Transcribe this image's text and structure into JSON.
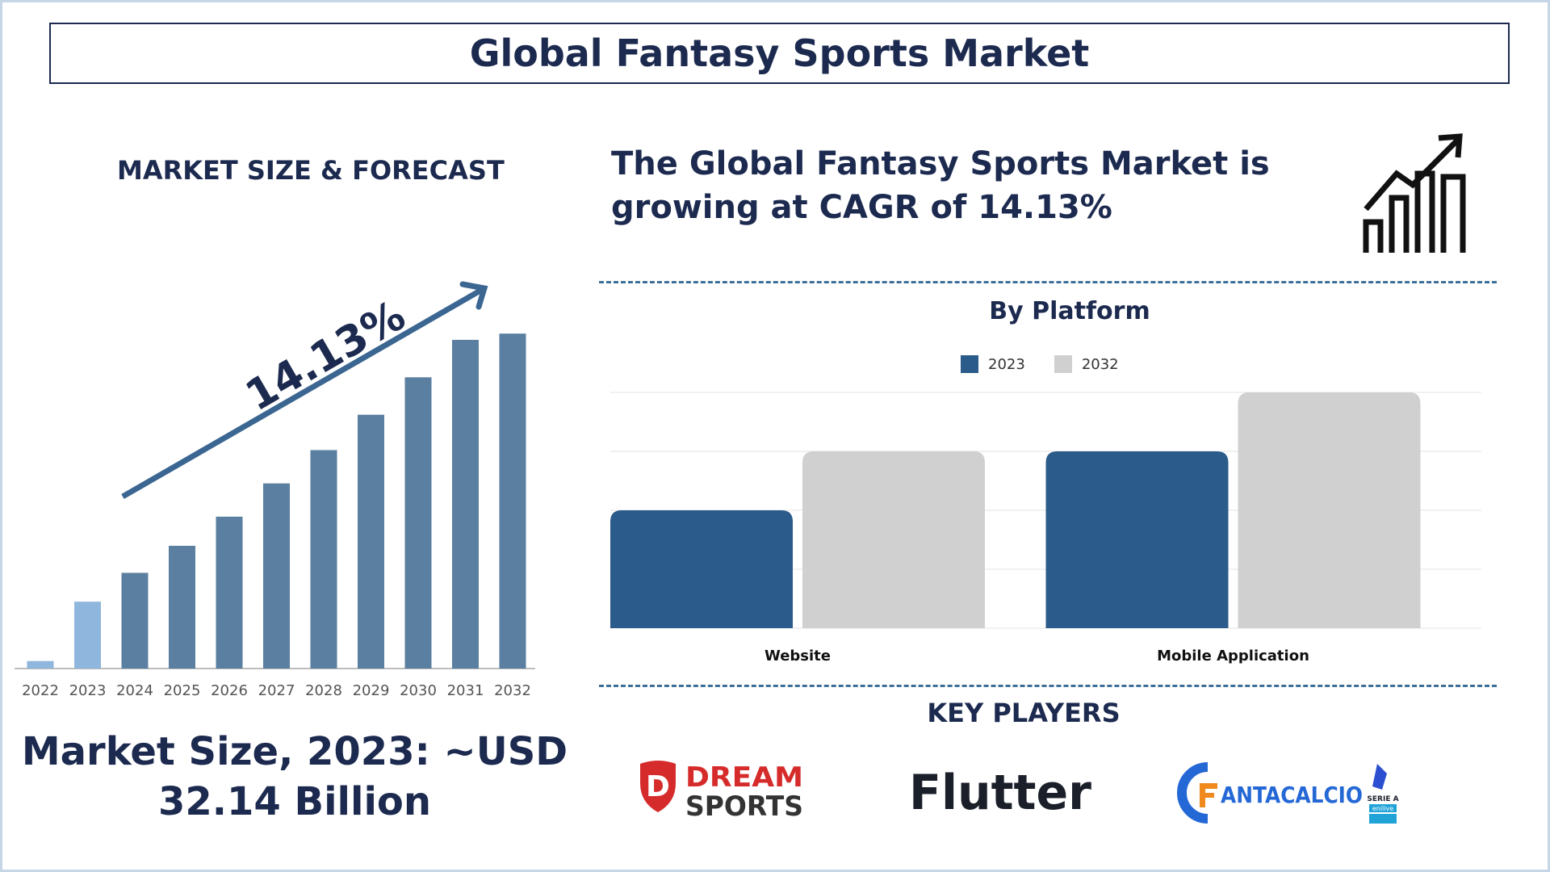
{
  "title": "Global Fantasy Sports Market",
  "market_heading": "MARKET SIZE & FORECAST",
  "cagr_line1": "The Global Fantasy Sports Market is",
  "cagr_line2": "growing at CAGR of 14.13%",
  "market_size_line1": "Market Size, 2023: ~USD",
  "market_size_line2": "32.14 Billion",
  "key_players_title": "KEY PLAYERS",
  "logos": {
    "dream_line1": "DREAM",
    "dream_line2": "SPORTS",
    "flutter": "Flutter",
    "fantacalcio": "ANTACALCIO",
    "serie_a": "SERIE A",
    "enilive": "enilive"
  },
  "colors": {
    "navy": "#1c2a4f",
    "bar_dark": "#5b7fa0",
    "bar_light": "#8fb6dc",
    "series_2023": "#2b5b8a",
    "series_2032": "#d0d0d0"
  },
  "chart_data": [
    {
      "type": "bar",
      "title": "MARKET SIZE & FORECAST",
      "annotation": "14.13%",
      "categories": [
        "2022",
        "2023",
        "2024",
        "2025",
        "2026",
        "2027",
        "2028",
        "2029",
        "2030",
        "2031",
        "2032"
      ],
      "values": [
        3.6,
        32.14,
        46,
        59,
        73,
        89,
        105,
        122,
        140,
        158,
        161
      ],
      "highlighted": [
        "2022",
        "2023"
      ],
      "ylim": [
        0,
        170
      ],
      "grid": false,
      "legend": "none"
    },
    {
      "type": "bar",
      "title": "By Platform",
      "categories": [
        "Website",
        "Mobile Application"
      ],
      "series": [
        {
          "name": "2023",
          "values": [
            2,
            3
          ]
        },
        {
          "name": "2032",
          "values": [
            3,
            4
          ]
        }
      ],
      "ylim": [
        0,
        4
      ],
      "grid": true,
      "legend": "top-center"
    }
  ]
}
